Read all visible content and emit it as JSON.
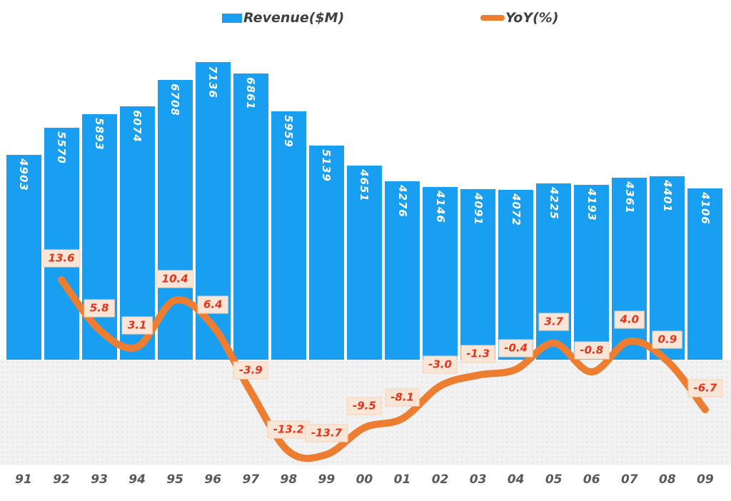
{
  "legend": {
    "revenue_label": "Revenue($M)",
    "yoy_label": "YoY(%)"
  },
  "colors": {
    "bar": "#189FF2",
    "line": "#ED7D31",
    "yoy_label_bg": "#FBE5D6",
    "yoy_label_border": "#F6D3B8",
    "yoy_label_text": "#E5341C",
    "bar_value_text": "#FFFFFF",
    "axis_text": "#595959",
    "legend_text": "#404040",
    "below_zero_bg": "#F2F2F2"
  },
  "chart_data": {
    "type": "bar",
    "subtype": "combo-bar-line",
    "title": "",
    "xlabel": "",
    "ylabel": "",
    "legend_position": "top",
    "grid": false,
    "data_labels": true,
    "categories": [
      "91",
      "92",
      "93",
      "94",
      "95",
      "96",
      "97",
      "98",
      "99",
      "00",
      "01",
      "02",
      "03",
      "04",
      "05",
      "06",
      "07",
      "08",
      "09"
    ],
    "series": [
      {
        "name": "Revenue($M)",
        "type": "bar",
        "values": [
          4903,
          5570,
          5893,
          6074,
          6708,
          7136,
          6861,
          5959,
          5139,
          4651,
          4276,
          4146,
          4091,
          4072,
          4225,
          4193,
          4361,
          4401,
          4106
        ]
      },
      {
        "name": "YoY(%)",
        "type": "line",
        "values": [
          null,
          13.6,
          5.8,
          3.1,
          10.4,
          6.4,
          -3.9,
          -13.2,
          -13.7,
          -9.5,
          -8.1,
          -3.0,
          -1.3,
          -0.4,
          3.7,
          -0.8,
          4.0,
          0.9,
          -6.7
        ]
      }
    ]
  }
}
